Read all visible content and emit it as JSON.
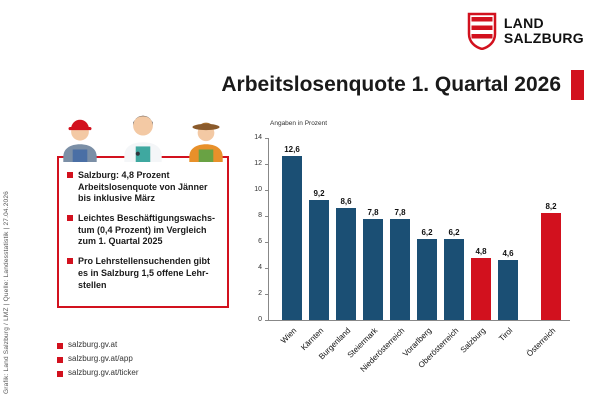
{
  "meta": {
    "source_note": "Grafik: Land Salzburg / LMZ  |  Quelle: Landesstatistik  |  27.04.2026"
  },
  "logo": {
    "line1": "LAND",
    "line2": "SALZBURG"
  },
  "title": "Arbeitslosenquote 1. Quartal 2026",
  "colors": {
    "accent": "#d2111e"
  },
  "infobox": {
    "items": [
      "Salzburg: 4,8 Prozent Arbeitslosenquote von Jänner bis inklusive März",
      "Leichtes Beschäftigungswachs-tum (0,4 Prozent) im Vergleich zum 1. Quartal 2025",
      "Pro Lehrstellensuchenden gibt es in Salzburg 1,5 offene Lehr-stellen"
    ]
  },
  "links": [
    "salzburg.gv.at",
    "salzburg.gv.at/app",
    "salzburg.gv.at/ticker"
  ],
  "chart_data": {
    "type": "bar",
    "note": "Angaben in Prozent",
    "categories": [
      "Wien",
      "Kärnten",
      "Burgenland",
      "Steiermark",
      "Niederösterreich",
      "Vorarlberg",
      "Oberösterreich",
      "Salzburg",
      "Tirol",
      "Österreich"
    ],
    "values": [
      12.6,
      9.2,
      8.6,
      7.8,
      7.8,
      6.2,
      6.2,
      4.8,
      4.6,
      8.2
    ],
    "labels": [
      "12,6",
      "9,2",
      "8,6",
      "7,8",
      "7,8",
      "6,2",
      "6,2",
      "4,8",
      "4,6",
      "8,2"
    ],
    "highlight": [
      "Salzburg",
      "Österreich"
    ],
    "ylim": [
      0,
      14
    ],
    "yticks": [
      0,
      2,
      4,
      6,
      8,
      10,
      12,
      14
    ],
    "colors": {
      "default": "#1b4f74",
      "highlight": "#d2111e"
    },
    "separate_last": true
  }
}
